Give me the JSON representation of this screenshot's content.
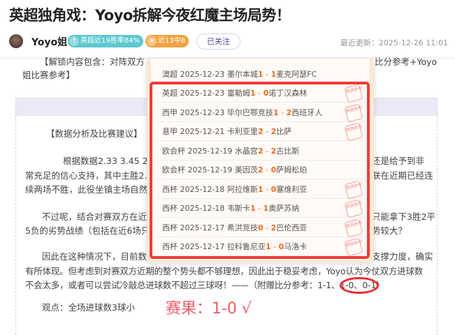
{
  "header": {
    "title": "英超独角戏：Yoyo拆解今夜红魔主场局势！",
    "author": "Yoyo姐",
    "badge_win_rate": "英超近19胜率84%",
    "badge_streak": "近13中8",
    "follow_label": "已关注",
    "updated": "最近更新：2025-12-26 11:01"
  },
  "intro": {
    "line1_left": "【解锁内容包含：对阵双方",
    "line1_right": "比分参考+Yoyo",
    "line2": "姐比赛参考】"
  },
  "article": {
    "heading": "【数据分析及比赛建议】",
    "p1": [
      {
        "l": "根据数据2.33 3.45 2.45的",
        "r": "还是给予到非"
      },
      {
        "l": "常充足的信心支持，其中主胜2.",
        "r": "联在近期已经连"
      },
      {
        "l": "续两场不胜，此役坐镇主场自然",
        "r": ""
      }
    ],
    "p2": [
      {
        "l": "不过呢，结合对赛双方在近",
        "r": "只能拿下3胜2平"
      },
      {
        "l": "5负的劣势战绩（包括在近6场只",
        "r": "势较大？"
      }
    ],
    "p3_line1_left": "因此在这种情况下，目前数",
    "p3_line1_right": "支撑力度，确实",
    "p3_line2": "有所体现。但考虑到对赛双方近期的整个势头都不够理想，因此出于稳妥考虑，Yoyo认为今仗双方进球数",
    "p3_line3": "不会太多，或者可以尝试冷敲总进球数不超过三球呀！——（附赠比分参考：1-1、1-0、0-1）",
    "viewpoint": "观点：全场进球数3球小",
    "result": "赛果：1-0 √"
  },
  "history": [
    {
      "league": "澳超",
      "date": "2025-12-23",
      "home": "墨尔本城",
      "hs": "1",
      "as": "1",
      "away": "麦克阿瑟FC",
      "hit": false
    },
    {
      "league": "英超",
      "date": "2025-12-23",
      "home": "富勒姆",
      "hs": "1",
      "as": "0",
      "away": "诺丁汉森林",
      "hit": true
    },
    {
      "league": "西甲",
      "date": "2025-12-23",
      "home": "毕尔巴鄂竞技",
      "hs": "1",
      "as": "2",
      "away": "西班牙人",
      "hit": true
    },
    {
      "league": "意甲",
      "date": "2025-12-21",
      "home": "卡利亚里",
      "hs": "2",
      "as": "2",
      "away": "比萨",
      "hit": true
    },
    {
      "league": "欧会杯",
      "date": "2025-12-19",
      "home": "水晶宫",
      "hs": "2",
      "as": "2",
      "away": "古比斯",
      "hit": false
    },
    {
      "league": "欧会杯",
      "date": "2025-12-19",
      "home": "美因茨",
      "hs": "2",
      "as": "0",
      "away": "萨姆松珀",
      "hit": false
    },
    {
      "league": "西杯",
      "date": "2025-12-18",
      "home": "阿拉维斯",
      "hs": "1",
      "as": "0",
      "away": "塞维利亚",
      "hit": true
    },
    {
      "league": "西杯",
      "date": "2025-12-18",
      "home": "韦斯卡",
      "hs": "1",
      "as": "1",
      "away": "奥萨苏纳",
      "hit": true
    },
    {
      "league": "西杯",
      "date": "2025-12-17",
      "home": "希洪竞技",
      "hs": "0",
      "as": "2",
      "away": "巴伦西亚",
      "hit": true
    },
    {
      "league": "西杯",
      "date": "2025-12-17",
      "home": "拉科鲁尼亚",
      "hs": "1",
      "as": "0",
      "away": "马洛卡",
      "hit": true
    }
  ],
  "stamp_text": "预测命中",
  "colors": {
    "score": "#f26b1d",
    "highlight": "#f03a3a",
    "result": "#f05a6a",
    "badge_teal": "#5cc8d0",
    "badge_orange": "#f0a443"
  }
}
